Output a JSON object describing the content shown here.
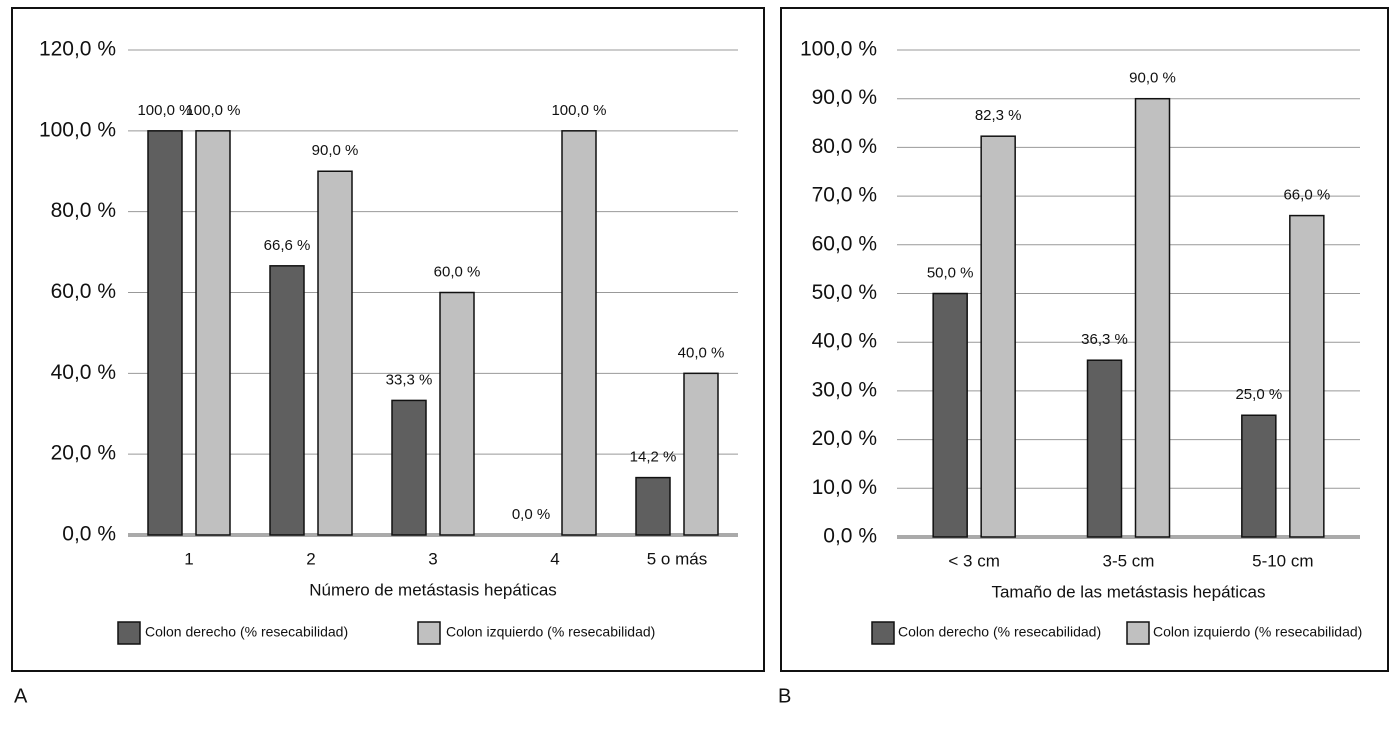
{
  "chart_data": [
    {
      "type": "bar",
      "panel": "A",
      "x_label": "Número de metástasis hepáticas",
      "categories": [
        "1",
        "2",
        "3",
        "4",
        "5 o más"
      ],
      "series": [
        {
          "name": "Colon derecho (% resecabilidad)",
          "color": "#5f5f5f",
          "values": [
            100,
            66.6,
            33.3,
            0,
            14.2
          ],
          "value_labels": [
            "100,0 %",
            "66,6 %",
            "33,3 %",
            "0,0 %",
            "14,2 %"
          ]
        },
        {
          "name": "Colon izquierdo (% resecabilidad)",
          "color": "#c0c0c0",
          "values": [
            100,
            90,
            60,
            100,
            40
          ],
          "value_labels": [
            "100,0 %",
            "90,0 %",
            "60,0 %",
            "100,0 %",
            "40,0 %"
          ]
        }
      ],
      "ylim": [
        0,
        120
      ],
      "yticks": [
        {
          "value": 0,
          "label": "0,0 %"
        },
        {
          "value": 20,
          "label": "20,0 %"
        },
        {
          "value": 40,
          "label": "40,0 %"
        },
        {
          "value": 60,
          "label": "60,0 %"
        },
        {
          "value": 80,
          "label": "80,0 %"
        },
        {
          "value": 100,
          "label": "100,0 %"
        },
        {
          "value": 120,
          "label": "120,0 %"
        }
      ],
      "grid": true
    },
    {
      "type": "bar",
      "panel": "B",
      "x_label": "Tamaño de las metástasis hepáticas",
      "categories": [
        "< 3 cm",
        "3-5 cm",
        "5-10 cm"
      ],
      "series": [
        {
          "name": "Colon derecho (% resecabilidad)",
          "color": "#5f5f5f",
          "values": [
            50,
            36.3,
            25
          ],
          "value_labels": [
            "50,0 %",
            "36,3 %",
            "25,0 %"
          ]
        },
        {
          "name": "Colon izquierdo (% resecabilidad)",
          "color": "#c0c0c0",
          "values": [
            82.3,
            90,
            66
          ],
          "value_labels": [
            "82,3 %",
            "90,0 %",
            "66,0 %"
          ]
        }
      ],
      "ylim": [
        0,
        100
      ],
      "yticks": [
        {
          "value": 0,
          "label": "0,0 %"
        },
        {
          "value": 10,
          "label": "10,0 %"
        },
        {
          "value": 20,
          "label": "20,0 %"
        },
        {
          "value": 30,
          "label": "30,0 %"
        },
        {
          "value": 40,
          "label": "40,0 %"
        },
        {
          "value": 50,
          "label": "50,0 %"
        },
        {
          "value": 60,
          "label": "60,0 %"
        },
        {
          "value": 70,
          "label": "70,0 %"
        },
        {
          "value": 80,
          "label": "80,0 %"
        },
        {
          "value": 90,
          "label": "90,0 %"
        },
        {
          "value": 100,
          "label": "100,0 %"
        }
      ],
      "grid": true
    }
  ]
}
